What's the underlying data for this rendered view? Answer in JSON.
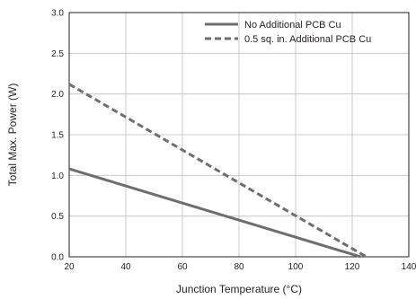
{
  "chart_data": {
    "type": "line",
    "xlabel": "Junction Temperature (°C)",
    "ylabel": "Total Max. Power (W)",
    "xlim": [
      20,
      140
    ],
    "ylim": [
      0,
      3.0
    ],
    "x_ticks": [
      "20",
      "40",
      "60",
      "80",
      "100",
      "120",
      "140"
    ],
    "y_ticks": [
      "0.0",
      "0.5",
      "1.0",
      "1.5",
      "2.0",
      "2.5",
      "3.0"
    ],
    "grid": true,
    "legend_position": "top-right",
    "series": [
      {
        "name": "No Additional PCB Cu",
        "line_style": "solid",
        "color": "#6d6e71",
        "points": [
          [
            20,
            1.08
          ],
          [
            123,
            0.0
          ]
        ]
      },
      {
        "name": "0.5 sq. in. Additional PCB Cu",
        "line_style": "dashed",
        "color": "#6d6e71",
        "points": [
          [
            20,
            2.12
          ],
          [
            125,
            0.0
          ]
        ]
      }
    ]
  }
}
